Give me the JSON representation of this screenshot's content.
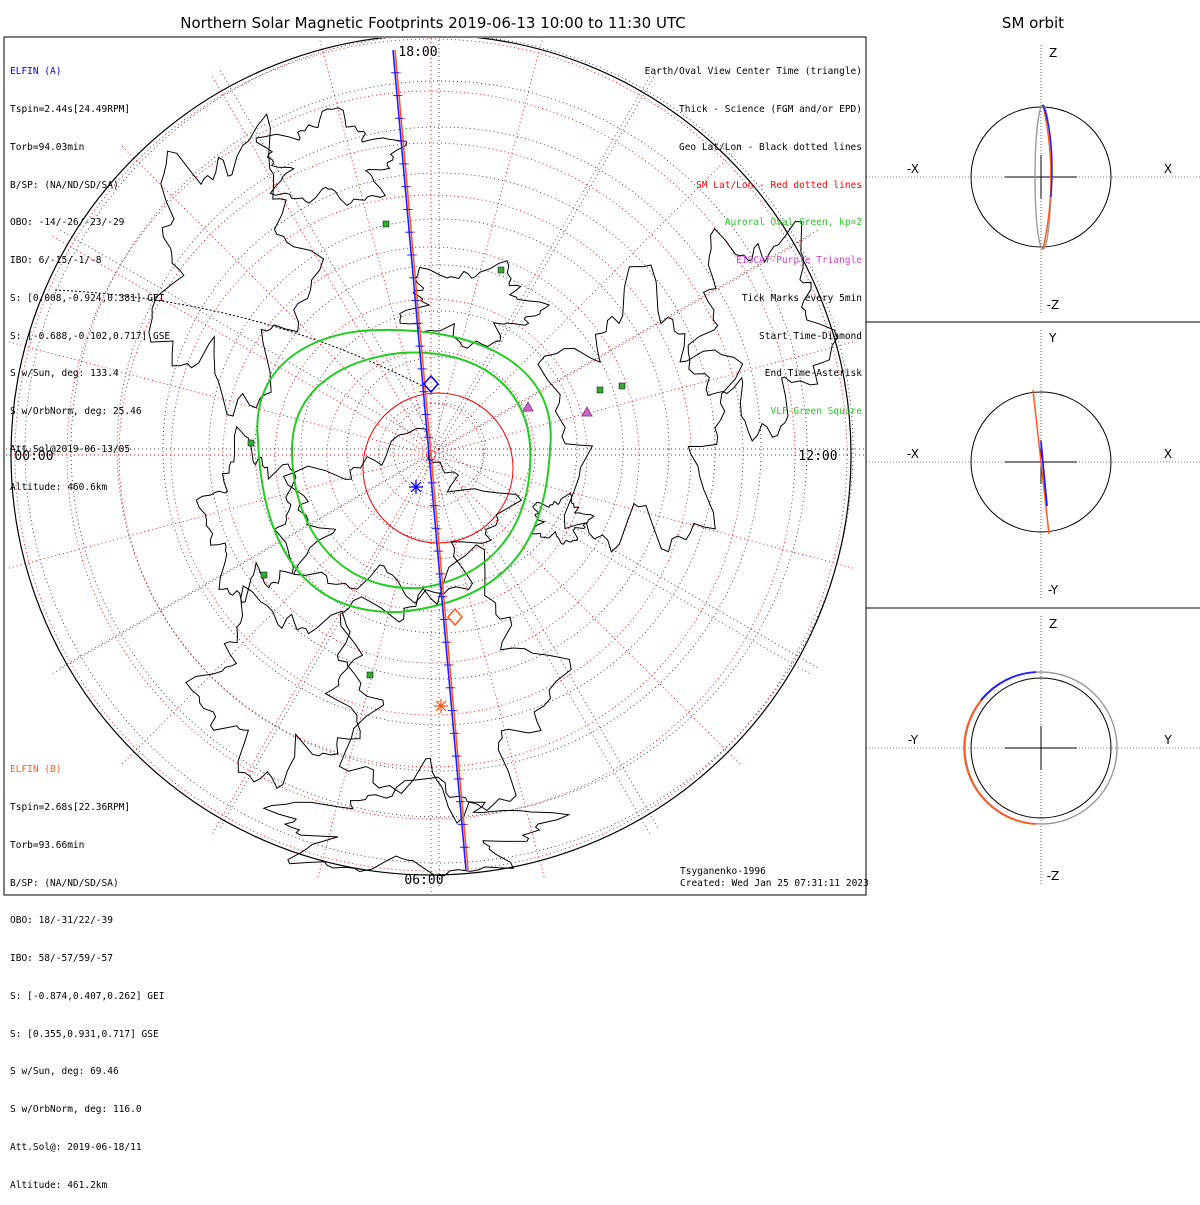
{
  "chart_data": [
    {
      "type": "polar map",
      "title": "Northern Solar Magnetic Footprints 2019-06-13 10:00 to 11:30 UTC",
      "local_time_labels": {
        "top": "18:00",
        "left": "00:00",
        "right": "12:00",
        "bottom": "06:00"
      },
      "elfin_a": {
        "header": "ELFIN (A)",
        "color": "#0000ff",
        "lines": [
          "Tspin=2.44s[24.49RPM]",
          "Torb=94.03min",
          "B/SP: (NA/ND/SD/SA)",
          "OBO: -14/-26/-23/-29",
          "IBO: 6/-15/-1/-8",
          "S: [0.008,-0.924,0.381] GEI",
          "S: [-0.688,-0.102,0.717] GSE",
          "S w/Sun, deg: 133.4",
          "S w/OrbNorm, deg: 25.46",
          "Att.Sol@2019-06-13/05",
          "Altitude: 460.6km"
        ]
      },
      "elfin_b": {
        "header": "ELFIN (B)",
        "color": "#ff5a1e",
        "lines": [
          "Tspin=2.68s[22.36RPM]",
          "Torb=93.66min",
          "B/SP: (NA/ND/SD/SA)",
          "OBO: 18/-31/22/-39",
          "IBO: 58/-57/59/-57",
          "S: [-0.874,0.407,0.262] GEI",
          "S: [0.355,0.931,0.717] GSE",
          "S w/Sun, deg: 69.46",
          "S w/OrbNorm, deg: 116.0",
          "Att.Sol@: 2019-06-18/11",
          "Altitude: 461.2km"
        ]
      },
      "legend": [
        {
          "text": "Earth/Oval View Center Time (triangle)",
          "color": "#000000"
        },
        {
          "text": "Thick - Science (FGM and/or EPD)",
          "color": "#000000"
        },
        {
          "text": "Geo Lat/Lon - Black dotted lines",
          "color": "#000000"
        },
        {
          "text": "SM Lat/Lon - Red dotted lines",
          "color": "#ff0000"
        },
        {
          "text": "Auroral Oval-Green, kp=2",
          "color": "#22cc22"
        },
        {
          "text": "EISCAT-Purple Triangle",
          "color": "#cc44cc"
        },
        {
          "text": "Tick Marks every 5min",
          "color": "#000000"
        },
        {
          "text": "Start Time-Diamond",
          "color": "#000000"
        },
        {
          "text": "End Time-Asterisk",
          "color": "#000000"
        },
        {
          "text": "VLF-Green Square",
          "color": "#22cc22"
        }
      ],
      "model": "Tsyganenko-1996",
      "created": "Created: Wed Jan 25 07:31:11 2023"
    },
    {
      "type": "orbit diagrams",
      "title": "SM orbit",
      "panels": [
        {
          "top": "Z",
          "bottom": "-Z",
          "left": "-X",
          "right": "X"
        },
        {
          "top": "Y",
          "bottom": "-Y",
          "left": "-X",
          "right": "X"
        },
        {
          "top": "Z",
          "bottom": "-Z",
          "left": "-Y",
          "right": "Y"
        }
      ]
    }
  ]
}
